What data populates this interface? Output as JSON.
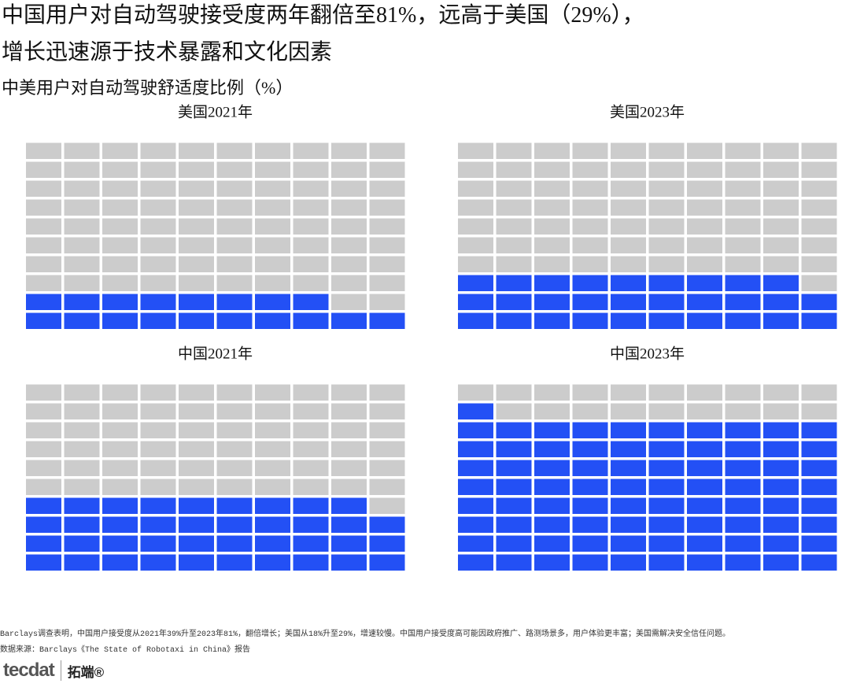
{
  "header": {
    "title_line1": "中国用户对自动驾驶接受度两年翻倍至81%，远高于美国（29%），",
    "title_line2": "增长迅速源于技术暴露和文化因素",
    "subtitle": "中美用户对自动驾驶舒适度比例（%）"
  },
  "chart_data": [
    {
      "type": "waffle",
      "title": "美国2021年",
      "values": [
        18
      ],
      "color": "#2350f5",
      "empty_color": "#cccccc"
    },
    {
      "type": "waffle",
      "title": "美国2023年",
      "values": [
        29
      ],
      "color": "#2350f5",
      "empty_color": "#cccccc"
    },
    {
      "type": "waffle",
      "title": "中国2021年",
      "values": [
        39
      ],
      "color": "#2350f5",
      "empty_color": "#cccccc"
    },
    {
      "type": "waffle",
      "title": "中国2023年",
      "values": [
        81
      ],
      "color": "#2350f5",
      "empty_color": "#cccccc"
    }
  ],
  "footer": {
    "note": "Barclays调查表明，中国用户接受度从2021年39%升至2023年81%，翻倍增长；美国从18%升至29%，增速较慢。中国用户接受度高可能因政府推广、路测场景多，用户体验更丰富；美国需解决安全信任问题。",
    "source": "数据来源：Barclays《The State of Robotaxi in China》报告",
    "logo_text": "tecdat",
    "logo_cn": "拓端®"
  }
}
